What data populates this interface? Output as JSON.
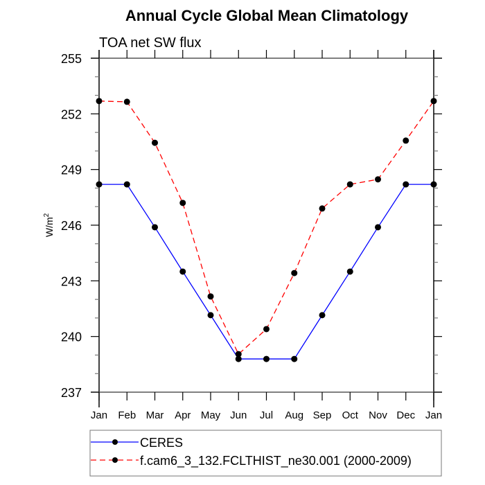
{
  "chart_data": {
    "type": "line",
    "title": "Annual Cycle Global Mean Climatology",
    "subtitle": "TOA net SW flux",
    "xlabel": "",
    "ylabel": "W/m",
    "ylabel_superscript": "2",
    "categories": [
      "Jan",
      "Feb",
      "Mar",
      "Apr",
      "May",
      "Jun",
      "Jul",
      "Aug",
      "Sep",
      "Oct",
      "Nov",
      "Dec",
      "Jan"
    ],
    "ylim": [
      237,
      255
    ],
    "y_major_ticks": [
      237,
      240,
      243,
      246,
      249,
      252,
      255
    ],
    "y_minor_step": 1,
    "grid": false,
    "legend_position": "bottom",
    "series": [
      {
        "name": "CERES",
        "color": "#0000ff",
        "dash": "solid",
        "marker": "filled-circle",
        "values": [
          248.2,
          248.2,
          245.89,
          243.5,
          241.15,
          238.79,
          238.79,
          238.79,
          241.15,
          243.5,
          245.89,
          248.2,
          248.2
        ]
      },
      {
        "name": "f.cam6_3_132.FCLTHIST_ne30.001 (2000-2009)",
        "color": "#ff0000",
        "dash": "dashed",
        "marker": "filled-circle",
        "values": [
          252.69,
          252.65,
          250.44,
          247.2,
          242.16,
          239.05,
          240.4,
          243.42,
          246.9,
          248.2,
          248.47,
          250.56,
          252.69
        ]
      }
    ]
  }
}
